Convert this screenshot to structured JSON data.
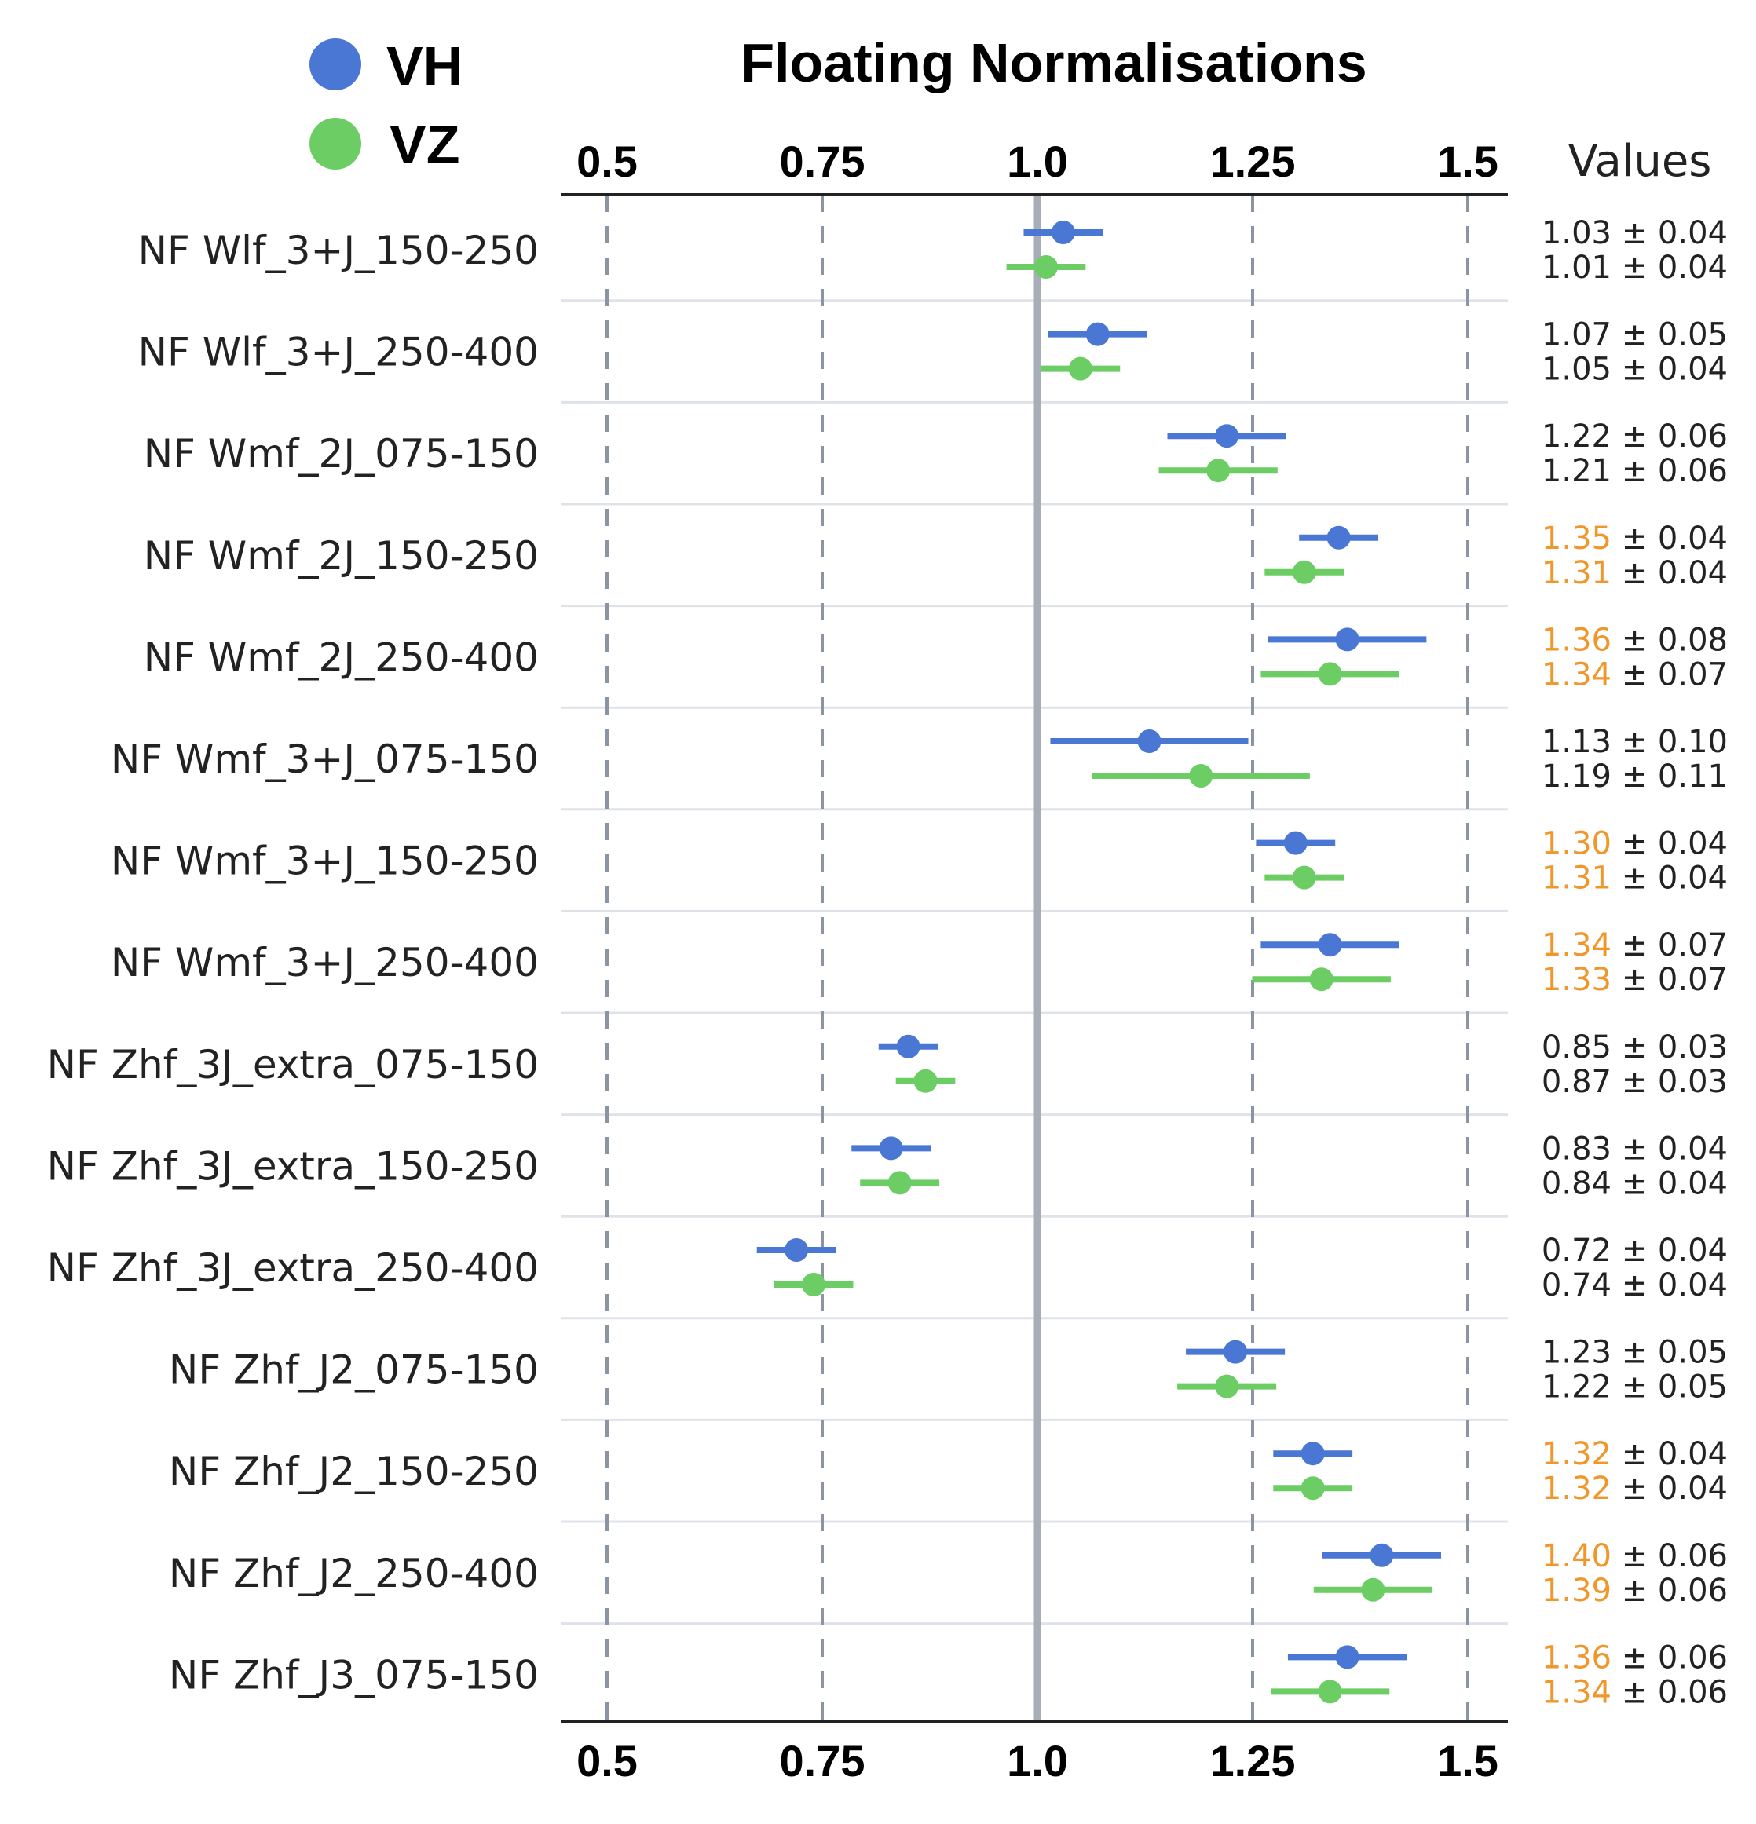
{
  "title": "Floating Normalisations",
  "legend": [
    {
      "label": "VH",
      "color": "#4a77d4"
    },
    {
      "label": "VZ",
      "color": "#6ccd64"
    }
  ],
  "values_header": "Values",
  "highlight_color": "#f0972b",
  "text_color": "#222222",
  "chart_data": {
    "type": "scatter",
    "title": "Floating Normalisations",
    "xlim": [
      0.4,
      1.52
    ],
    "xticks": [
      0.5,
      0.75,
      1.0,
      1.25,
      1.5
    ],
    "xtick_labels": [
      "0.5",
      "0.75",
      "1.0",
      "1.25",
      "1.5"
    ],
    "reference_line": 1.0,
    "grid": "vertical dashed at ticks",
    "legend_position": "top-left",
    "categories": [
      "NF Wlf_3+J_150-250",
      "NF Wlf_3+J_250-400",
      "NF Wmf_2J_075-150",
      "NF Wmf_2J_150-250",
      "NF Wmf_2J_250-400",
      "NF Wmf_3+J_075-150",
      "NF Wmf_3+J_150-250",
      "NF Wmf_3+J_250-400",
      "NF Zhf_3J_extra_075-150",
      "NF Zhf_3J_extra_150-250",
      "NF Zhf_3J_extra_250-400",
      "NF Zhf_J2_075-150",
      "NF Zhf_J2_150-250",
      "NF Zhf_J2_250-400",
      "NF Zhf_J3_075-150"
    ],
    "series": [
      {
        "name": "VH",
        "color": "#4a77d4",
        "values": [
          1.03,
          1.07,
          1.22,
          1.35,
          1.36,
          1.13,
          1.3,
          1.34,
          0.85,
          0.83,
          0.72,
          1.23,
          1.32,
          1.4,
          1.36
        ],
        "errors": [
          0.04,
          0.05,
          0.06,
          0.04,
          0.08,
          0.1,
          0.04,
          0.07,
          0.03,
          0.04,
          0.04,
          0.05,
          0.04,
          0.06,
          0.06
        ],
        "value_labels": [
          "1.03",
          "1.07",
          "1.22",
          "1.35",
          "1.36",
          "1.13",
          "1.30",
          "1.34",
          "0.85",
          "0.83",
          "0.72",
          "1.23",
          "1.32",
          "1.40",
          "1.36"
        ],
        "error_labels": [
          "0.04",
          "0.05",
          "0.06",
          "0.04",
          "0.08",
          "0.10",
          "0.04",
          "0.07",
          "0.03",
          "0.04",
          "0.04",
          "0.05",
          "0.04",
          "0.06",
          "0.06"
        ],
        "highlighted": [
          false,
          false,
          false,
          true,
          true,
          false,
          true,
          true,
          false,
          false,
          false,
          false,
          true,
          true,
          true
        ]
      },
      {
        "name": "VZ",
        "color": "#6ccd64",
        "values": [
          1.01,
          1.05,
          1.21,
          1.31,
          1.34,
          1.19,
          1.31,
          1.33,
          0.87,
          0.84,
          0.74,
          1.22,
          1.32,
          1.39,
          1.34
        ],
        "errors": [
          0.04,
          0.04,
          0.06,
          0.04,
          0.07,
          0.11,
          0.04,
          0.07,
          0.03,
          0.04,
          0.04,
          0.05,
          0.04,
          0.06,
          0.06
        ],
        "value_labels": [
          "1.01",
          "1.05",
          "1.21",
          "1.31",
          "1.34",
          "1.19",
          "1.31",
          "1.33",
          "0.87",
          "0.84",
          "0.74",
          "1.22",
          "1.32",
          "1.39",
          "1.34"
        ],
        "error_labels": [
          "0.04",
          "0.04",
          "0.06",
          "0.04",
          "0.07",
          "0.11",
          "0.04",
          "0.07",
          "0.03",
          "0.04",
          "0.04",
          "0.05",
          "0.04",
          "0.06",
          "0.06"
        ],
        "highlighted": [
          false,
          false,
          false,
          true,
          true,
          false,
          true,
          true,
          false,
          false,
          false,
          false,
          true,
          true,
          true
        ]
      }
    ]
  }
}
